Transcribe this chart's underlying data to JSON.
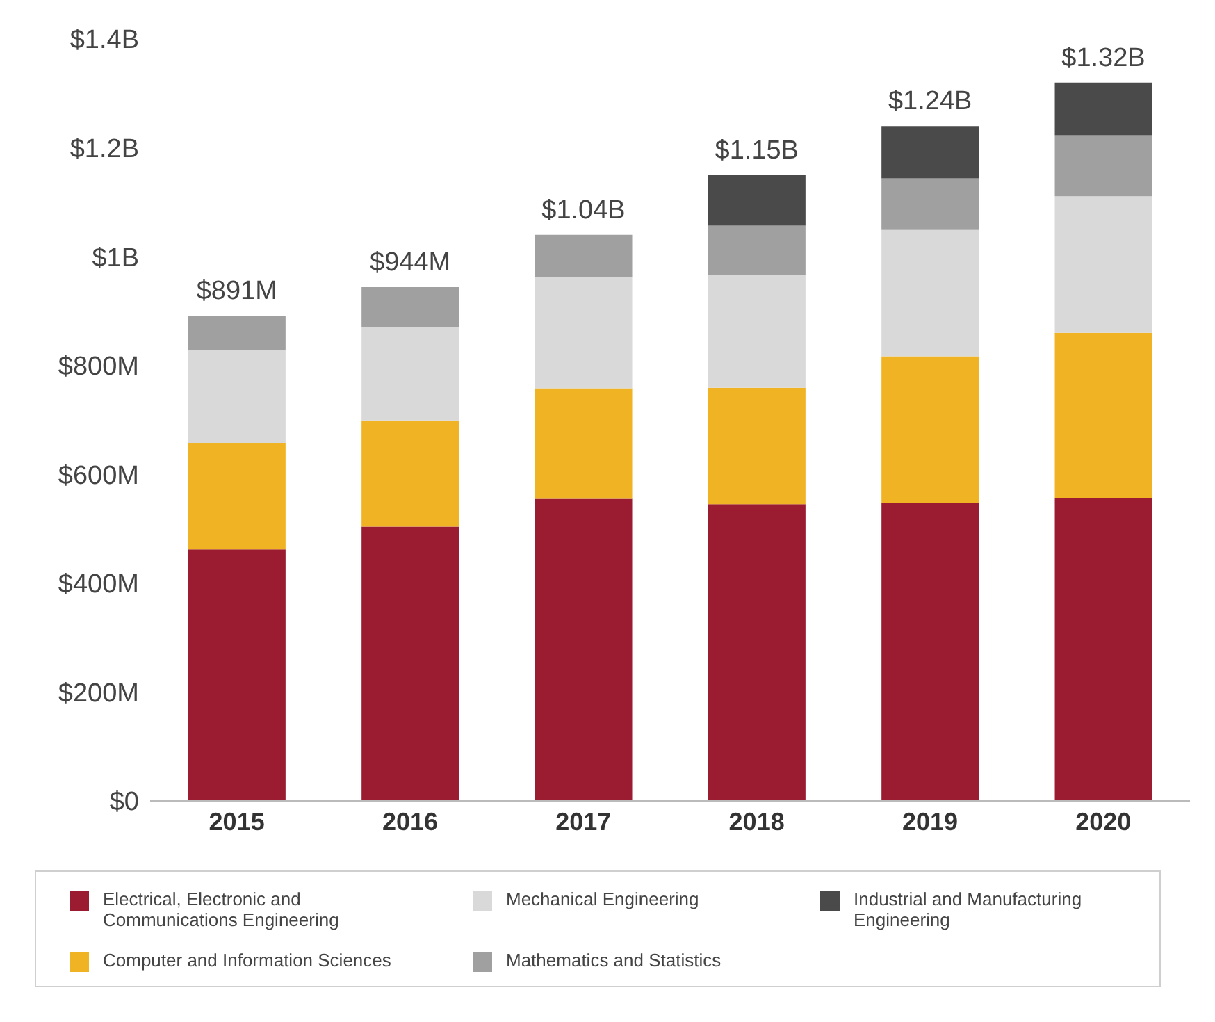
{
  "chart_data": {
    "type": "bar",
    "stacked": true,
    "categories": [
      "2015",
      "2016",
      "2017",
      "2018",
      "2019",
      "2020"
    ],
    "series": [
      {
        "name": "Electrical, Electronic and Communications Engineering",
        "color": "#9b1b30",
        "values": [
          462000000,
          504000000,
          555000000,
          545000000,
          548000000,
          556000000
        ]
      },
      {
        "name": "Computer and Information Sciences",
        "color": "#f0b323",
        "values": [
          196000000,
          195000000,
          203000000,
          214000000,
          269000000,
          304000000
        ]
      },
      {
        "name": "Mechanical Engineering",
        "color": "#d9d9d9",
        "values": [
          170000000,
          171000000,
          205000000,
          207000000,
          232000000,
          251000000
        ]
      },
      {
        "name": "Mathematics and Statistics",
        "color": "#a0a0a0",
        "values": [
          63000000,
          74000000,
          77000000,
          91000000,
          95000000,
          112000000
        ]
      },
      {
        "name": "Industrial and Manufacturing Engineering",
        "color": "#4a4a4a",
        "values": [
          null,
          null,
          null,
          93000000,
          96000000,
          97000000
        ]
      }
    ],
    "totals": [
      "$891M",
      "$944M",
      "$1.04B",
      "$1.15B",
      "$1.24B",
      "$1.32B"
    ],
    "ylim": [
      0,
      1400000000
    ],
    "yticks": [
      {
        "value": 0,
        "label": "$0"
      },
      {
        "value": 200000000,
        "label": "$200M"
      },
      {
        "value": 400000000,
        "label": "$400M"
      },
      {
        "value": 600000000,
        "label": "$600M"
      },
      {
        "value": 800000000,
        "label": "$800M"
      },
      {
        "value": 1000000000,
        "label": "$1B"
      },
      {
        "value": 1200000000,
        "label": "$1.2B"
      },
      {
        "value": 1400000000,
        "label": "$1.4B"
      }
    ],
    "grid": false,
    "legend": "bottom"
  }
}
